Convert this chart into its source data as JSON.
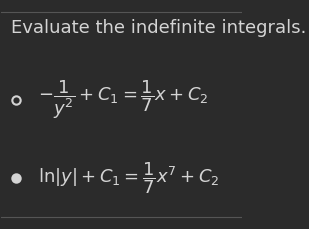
{
  "title": "Evaluate the indefinite integrals.",
  "background_color": "#2b2b2b",
  "title_color": "#d4d4d4",
  "text_color": "#d4d4d4",
  "bullet_color": "#d4d4d4",
  "line_color": "#555555",
  "title_fontsize": 13,
  "math_fontsize": 13,
  "line1": "$-\\dfrac{1}{y^2} + C_1 = \\dfrac{1}{7}x + C_2$",
  "line2": "$\\ln|y| + C_1 = \\dfrac{1}{7}x^7 + C_2$"
}
